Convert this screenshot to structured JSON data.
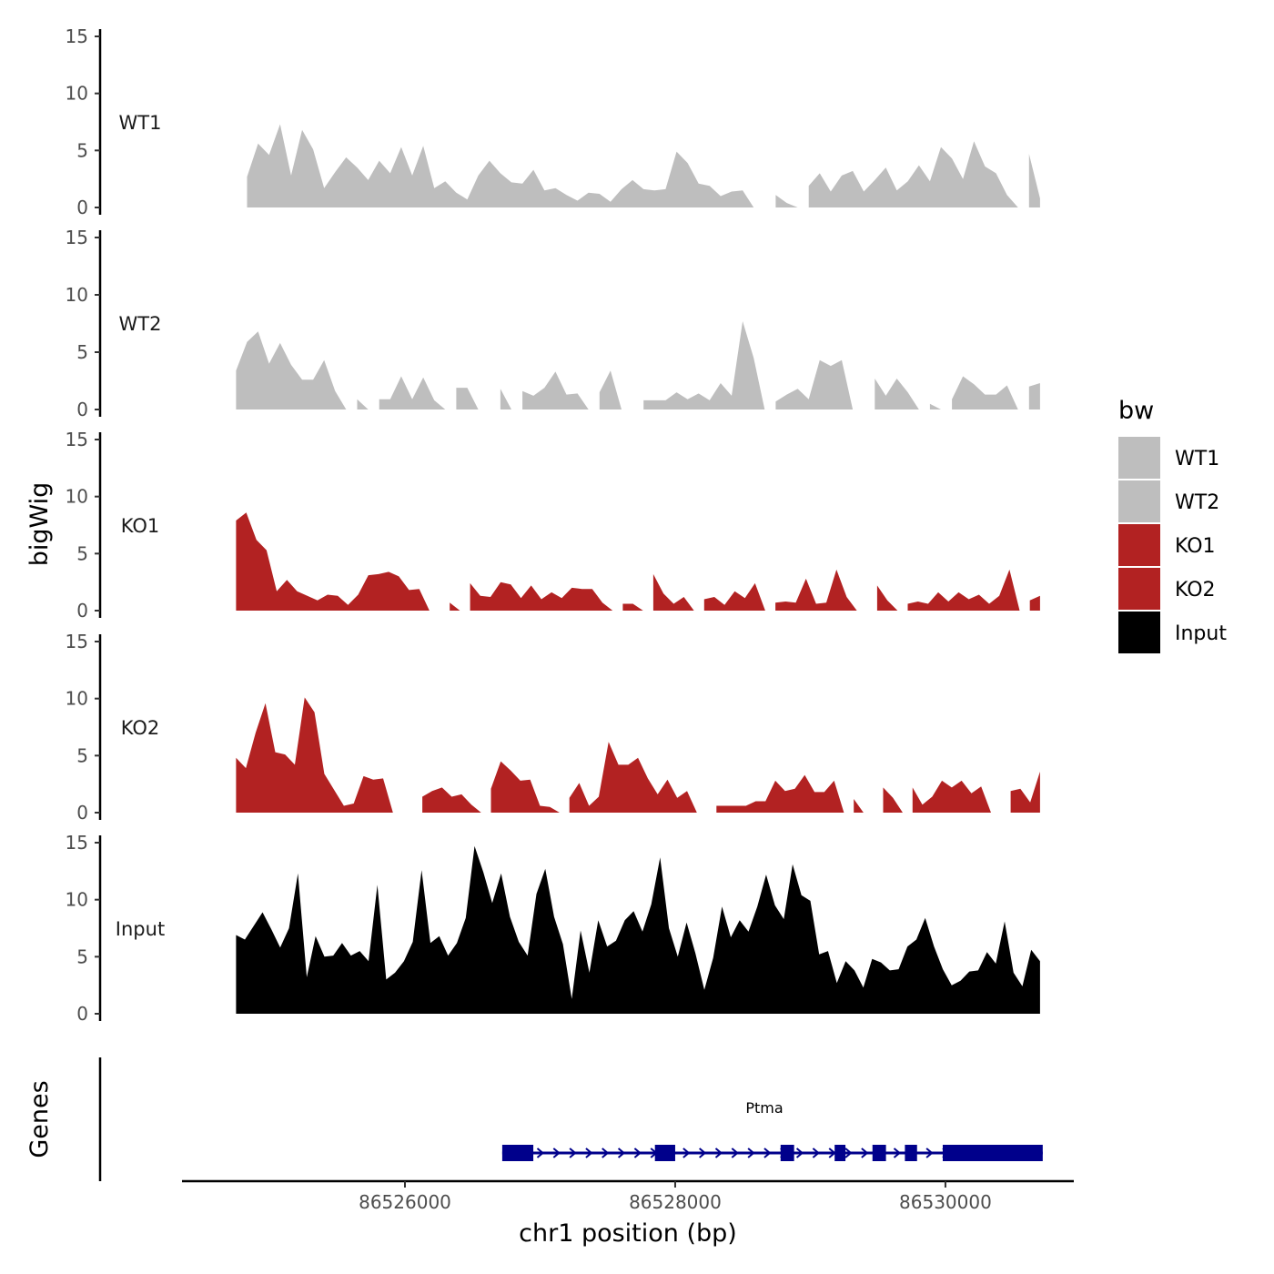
{
  "chart_data": {
    "type": "area",
    "x_unit": "bp",
    "x_range": [
      86524750,
      86530700
    ],
    "xlim": [
      86524350,
      86530950
    ],
    "x_ticks": [
      86526000,
      86528000,
      86530000
    ],
    "x_tick_labels": [
      "86526000",
      "86528000",
      "86530000"
    ],
    "xlabel": "chr1 position (bp)",
    "ylabel": "bigWig",
    "genes_label": "Genes",
    "ylim": [
      0,
      15
    ],
    "y_ticks": [
      0,
      5,
      10,
      15
    ],
    "y_tick_labels": [
      "0",
      "5",
      "10",
      "15"
    ],
    "legend": {
      "title": "bw",
      "entries": [
        {
          "name": "WT1",
          "color": "#bebebe"
        },
        {
          "name": "WT2",
          "color": "#bebebe"
        },
        {
          "name": "KO1",
          "color": "#b22222"
        },
        {
          "name": "KO2",
          "color": "#b22222"
        },
        {
          "name": "Input",
          "color": "#000000"
        }
      ]
    },
    "series": [
      {
        "name": "WT1",
        "color": "#bebebe",
        "values": [
          0.0,
          2.7,
          5.6,
          4.6,
          7.3,
          2.8,
          6.8,
          5.1,
          1.7,
          3.1,
          4.4,
          3.5,
          2.4,
          4.1,
          3.0,
          5.3,
          2.8,
          5.4,
          1.7,
          2.3,
          1.3,
          0.7,
          2.8,
          4.1,
          3.0,
          2.2,
          2.1,
          3.3,
          1.5,
          1.7,
          1.1,
          0.6,
          1.3,
          1.2,
          0.5,
          1.6,
          2.4,
          1.6,
          1.5,
          1.6,
          4.9,
          3.9,
          2.1,
          1.9,
          1.0,
          1.4,
          1.5,
          0.0,
          0.0,
          1.1,
          0.4,
          0.0,
          1.9,
          3.0,
          1.4,
          2.8,
          3.2,
          1.4,
          2.4,
          3.5,
          1.5,
          2.3,
          3.7,
          2.3,
          5.3,
          4.3,
          2.5,
          5.8,
          3.6,
          3.0,
          1.1,
          0.0,
          4.7,
          0.8
        ]
      },
      {
        "name": "WT2",
        "color": "#bebebe",
        "values": [
          3.4,
          5.9,
          6.8,
          4.0,
          5.8,
          3.9,
          2.6,
          2.6,
          4.3,
          1.6,
          0.0,
          0.9,
          0.0,
          0.9,
          0.9,
          2.9,
          0.9,
          2.8,
          0.8,
          0.0,
          1.9,
          1.9,
          0.0,
          0.0,
          1.8,
          0.0,
          1.6,
          1.2,
          1.9,
          3.3,
          1.3,
          1.4,
          0.0,
          1.5,
          3.4,
          0.0,
          0.0,
          0.8,
          0.8,
          0.8,
          1.5,
          0.9,
          1.4,
          0.8,
          2.3,
          1.2,
          7.7,
          4.5,
          0.0,
          0.7,
          1.3,
          1.8,
          0.9,
          4.3,
          3.8,
          4.3,
          0.0,
          0.0,
          2.7,
          1.2,
          2.7,
          1.5,
          0.0,
          0.5,
          0.0,
          0.9,
          2.9,
          2.2,
          1.3,
          1.3,
          2.1,
          0.0,
          2.0,
          2.3
        ]
      },
      {
        "name": "KO1",
        "color": "#b22222",
        "values": [
          7.9,
          8.6,
          6.2,
          5.3,
          1.7,
          2.7,
          1.7,
          1.3,
          0.9,
          1.4,
          1.3,
          0.5,
          1.4,
          3.1,
          3.2,
          3.4,
          3.0,
          1.8,
          1.9,
          0.0,
          0.0,
          0.7,
          0.0,
          2.4,
          1.3,
          1.2,
          2.5,
          2.3,
          1.1,
          2.2,
          1.0,
          1.6,
          1.1,
          2.0,
          1.9,
          1.9,
          0.7,
          0.0,
          0.6,
          0.6,
          0.0,
          3.2,
          1.5,
          0.6,
          1.2,
          0.0,
          1.0,
          1.2,
          0.5,
          1.7,
          1.1,
          2.4,
          0.0,
          0.7,
          0.8,
          0.7,
          2.8,
          0.6,
          0.7,
          3.6,
          1.2,
          0.0,
          0.0,
          2.2,
          0.9,
          0.0,
          0.6,
          0.8,
          0.6,
          1.6,
          0.8,
          1.6,
          1.0,
          1.4,
          0.6,
          1.3,
          3.6,
          0.0,
          0.9,
          1.3
        ]
      },
      {
        "name": "KO2",
        "color": "#b22222",
        "values": [
          4.8,
          3.9,
          7.0,
          9.6,
          5.3,
          5.1,
          4.2,
          10.1,
          8.8,
          3.4,
          2.0,
          0.6,
          0.8,
          3.2,
          2.9,
          3.0,
          0.0,
          0.0,
          0.0,
          1.4,
          1.9,
          2.2,
          1.4,
          1.6,
          0.7,
          0.0,
          2.1,
          4.5,
          3.7,
          2.8,
          2.9,
          0.6,
          0.5,
          0.0,
          1.3,
          2.6,
          0.6,
          1.4,
          6.2,
          4.2,
          4.2,
          4.8,
          3.0,
          1.6,
          2.9,
          1.3,
          1.9,
          0.0,
          0.0,
          0.6,
          0.6,
          0.6,
          0.6,
          1.0,
          1.0,
          2.8,
          1.9,
          2.1,
          3.3,
          1.8,
          1.8,
          2.8,
          0.0,
          1.2,
          0.0,
          0.0,
          2.2,
          1.3,
          0.0,
          2.2,
          0.7,
          1.4,
          2.8,
          2.2,
          2.8,
          1.7,
          2.3,
          0.0,
          0.0,
          1.9,
          2.1,
          0.9,
          3.6
        ]
      },
      {
        "name": "Input",
        "color": "#000000",
        "values": [
          6.9,
          6.5,
          7.7,
          8.9,
          7.4,
          5.8,
          7.5,
          12.3,
          3.2,
          6.8,
          5.0,
          5.1,
          6.2,
          5.1,
          5.5,
          4.6,
          11.3,
          3.0,
          3.6,
          4.6,
          6.3,
          12.6,
          6.2,
          6.8,
          5.1,
          6.2,
          8.4,
          14.7,
          12.4,
          9.7,
          12.3,
          8.5,
          6.3,
          5.1,
          10.5,
          12.7,
          8.5,
          6.1,
          1.3,
          7.3,
          3.6,
          8.2,
          5.9,
          6.4,
          8.2,
          9.0,
          7.2,
          9.6,
          13.7,
          7.5,
          5.0,
          8.0,
          5.3,
          2.1,
          4.9,
          9.4,
          6.7,
          8.2,
          7.2,
          9.4,
          12.2,
          9.5,
          8.3,
          13.1,
          10.4,
          9.9,
          5.2,
          5.5,
          2.7,
          4.6,
          3.8,
          2.3,
          4.8,
          4.5,
          3.8,
          3.9,
          5.9,
          6.5,
          8.4,
          5.9,
          3.9,
          2.5,
          2.9,
          3.7,
          3.8,
          5.4,
          4.4,
          8.1,
          3.6,
          2.4,
          5.6,
          4.6
        ]
      }
    ],
    "genes": [
      {
        "name": "Ptma",
        "color": "#00008b",
        "strand": "+",
        "start": 86526720,
        "end": 86530720,
        "exons": [
          [
            86526720,
            86526950
          ],
          [
            86527850,
            86528000
          ],
          [
            86528780,
            86528880
          ],
          [
            86529180,
            86529260
          ],
          [
            86529460,
            86529560
          ],
          [
            86529700,
            86529790
          ],
          [
            86529980,
            86530720
          ]
        ]
      }
    ]
  }
}
